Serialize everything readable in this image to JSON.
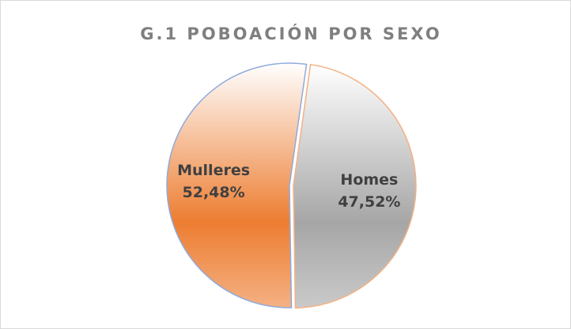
{
  "chart_data": {
    "type": "pie",
    "title": "G.1 POBOACIÓN POR SEXO",
    "categories": [
      "Homes",
      "Mulleres"
    ],
    "values": [
      47.52,
      52.48
    ],
    "value_labels": [
      "47,52%",
      "52,48%"
    ],
    "colors": [
      "#a6a6a6",
      "#ed7d31"
    ],
    "border_colors": [
      "#f4b183",
      "#8faadc"
    ]
  }
}
